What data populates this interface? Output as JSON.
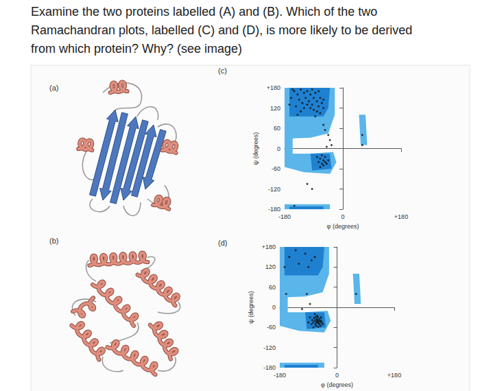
{
  "question": {
    "lines": [
      "Examine the two proteins labelled (A) and (B). Which of the two",
      "Ramachandran plots, labelled (C) and (D), is more likely to be derived",
      "from which protein? Why? (see image)"
    ]
  },
  "figure": {
    "proteins": [
      {
        "label": "(a)"
      },
      {
        "label": "(b)"
      }
    ]
  },
  "chart_data": [
    {
      "label": "(c)",
      "type": "scatter",
      "xlabel": "φ (degrees)",
      "ylabel": "ψ (degrees)",
      "xlim": [
        -180,
        180
      ],
      "ylim": [
        -180,
        180
      ],
      "xticks": [
        -180,
        0,
        {
          "value": 180,
          "label": "+180"
        }
      ],
      "yticks": [
        {
          "value": 180,
          "label": "+180"
        },
        120,
        60,
        0,
        -60,
        -120,
        -180
      ],
      "grid": false,
      "regions": [
        {
          "color": "#5ab5ea",
          "points": [
            [
              -180,
              180
            ],
            [
              -25,
              180
            ],
            [
              -25,
              100
            ],
            [
              -45,
              45
            ],
            [
              -100,
              32
            ],
            [
              -155,
              30
            ],
            [
              -155,
              -15
            ],
            [
              -100,
              -15
            ],
            [
              -30,
              -10
            ],
            [
              -20,
              -40
            ],
            [
              -40,
              -75
            ],
            [
              -120,
              -70
            ],
            [
              -180,
              -55
            ]
          ]
        },
        {
          "color": "#5ab5ea",
          "points": [
            [
              -180,
              -180
            ],
            [
              -40,
              -180
            ],
            [
              -40,
              -165
            ],
            [
              -180,
              -165
            ]
          ]
        },
        {
          "color": "#5ab5ea",
          "points": [
            [
              50,
              100
            ],
            [
              70,
              100
            ],
            [
              75,
              10
            ],
            [
              55,
              10
            ]
          ]
        },
        {
          "color": "#1f80d0",
          "points": [
            [
              -165,
              180
            ],
            [
              -40,
              180
            ],
            [
              -45,
              120
            ],
            [
              -60,
              95
            ],
            [
              -165,
              95
            ]
          ]
        },
        {
          "color": "#1f80d0",
          "points": [
            [
              -100,
              -15
            ],
            [
              -40,
              -15
            ],
            [
              -35,
              -60
            ],
            [
              -95,
              -65
            ]
          ]
        },
        {
          "color": "#1f80d0",
          "points": [
            [
              -165,
              -180
            ],
            [
              -60,
              -180
            ],
            [
              -60,
              -172
            ],
            [
              -165,
              -172
            ]
          ]
        }
      ],
      "points": {
        "color": "#111111",
        "values": [
          [
            -150,
            170
          ],
          [
            -140,
            160
          ],
          [
            -130,
            175
          ],
          [
            -120,
            165
          ],
          [
            -115,
            150
          ],
          [
            -110,
            170
          ],
          [
            -105,
            140
          ],
          [
            -100,
            160
          ],
          [
            -95,
            130
          ],
          [
            -90,
            150
          ],
          [
            -85,
            165
          ],
          [
            -80,
            140
          ],
          [
            -75,
            125
          ],
          [
            -70,
            150
          ],
          [
            -125,
            135
          ],
          [
            -135,
            145
          ],
          [
            -145,
            125
          ],
          [
            -160,
            150
          ],
          [
            -155,
            175
          ],
          [
            -100,
            120
          ],
          [
            -90,
            115
          ],
          [
            -80,
            110
          ],
          [
            -65,
            135
          ],
          [
            -60,
            145
          ],
          [
            -110,
            130
          ],
          [
            -120,
            120
          ],
          [
            -130,
            110
          ],
          [
            -140,
            100
          ],
          [
            -75,
            170
          ],
          [
            -60,
            120
          ],
          [
            -85,
            95
          ],
          [
            -95,
            175
          ],
          [
            -165,
            130
          ],
          [
            -70,
            105
          ],
          [
            -60,
            70
          ],
          [
            -55,
            55
          ],
          [
            -45,
            40
          ],
          [
            -40,
            25
          ],
          [
            -35,
            10
          ],
          [
            -50,
            5
          ],
          [
            -75,
            -40
          ],
          [
            -70,
            -30
          ],
          [
            -65,
            -45
          ],
          [
            -60,
            -35
          ],
          [
            -60,
            -50
          ],
          [
            -55,
            -40
          ],
          [
            -55,
            -25
          ],
          [
            -50,
            -45
          ],
          [
            -70,
            -55
          ],
          [
            -80,
            -25
          ],
          [
            -65,
            -20
          ],
          [
            -45,
            -35
          ],
          [
            60,
            40
          ],
          [
            60,
            10
          ],
          [
            -110,
            -105
          ],
          [
            -150,
            -170
          ],
          [
            -95,
            -120
          ]
        ]
      }
    },
    {
      "label": "(d)",
      "type": "scatter",
      "xlabel": "φ (degrees)",
      "ylabel": "ψ (degrees)",
      "xlim": [
        -180,
        180
      ],
      "ylim": [
        -180,
        180
      ],
      "xticks": [
        -180,
        0,
        {
          "value": 180,
          "label": "+180"
        }
      ],
      "yticks": [
        {
          "value": 180,
          "label": "+180"
        },
        120,
        60,
        0,
        -60,
        -120,
        -180
      ],
      "grid": false,
      "regions": [
        {
          "color": "#5ab5ea",
          "points": [
            [
              -180,
              180
            ],
            [
              -25,
              180
            ],
            [
              -25,
              100
            ],
            [
              -45,
              45
            ],
            [
              -100,
              32
            ],
            [
              -155,
              30
            ],
            [
              -155,
              -15
            ],
            [
              -100,
              -15
            ],
            [
              -30,
              -10
            ],
            [
              -20,
              -40
            ],
            [
              -40,
              -75
            ],
            [
              -120,
              -70
            ],
            [
              -180,
              -55
            ]
          ]
        },
        {
          "color": "#5ab5ea",
          "points": [
            [
              -180,
              -180
            ],
            [
              -40,
              -180
            ],
            [
              -40,
              -165
            ],
            [
              -180,
              -165
            ]
          ]
        },
        {
          "color": "#5ab5ea",
          "points": [
            [
              50,
              100
            ],
            [
              70,
              100
            ],
            [
              75,
              10
            ],
            [
              55,
              10
            ]
          ]
        },
        {
          "color": "#1f80d0",
          "points": [
            [
              -165,
              180
            ],
            [
              -40,
              180
            ],
            [
              -45,
              120
            ],
            [
              -60,
              95
            ],
            [
              -165,
              95
            ]
          ]
        },
        {
          "color": "#1f80d0",
          "points": [
            [
              -100,
              -15
            ],
            [
              -40,
              -15
            ],
            [
              -35,
              -60
            ],
            [
              -95,
              -65
            ]
          ]
        },
        {
          "color": "#1f80d0",
          "points": [
            [
              -165,
              -180
            ],
            [
              -60,
              -180
            ],
            [
              -60,
              -172
            ],
            [
              -165,
              -172
            ]
          ]
        }
      ],
      "points": {
        "color": "#111111",
        "values": [
          [
            -75,
            -45
          ],
          [
            -70,
            -40
          ],
          [
            -68,
            -50
          ],
          [
            -65,
            -35
          ],
          [
            -65,
            -45
          ],
          [
            -63,
            -42
          ],
          [
            -62,
            -38
          ],
          [
            -60,
            -45
          ],
          [
            -60,
            -30
          ],
          [
            -58,
            -48
          ],
          [
            -57,
            -40
          ],
          [
            -55,
            -35
          ],
          [
            -55,
            -50
          ],
          [
            -53,
            -43
          ],
          [
            -50,
            -40
          ],
          [
            -50,
            -30
          ],
          [
            -48,
            -45
          ],
          [
            -72,
            -32
          ],
          [
            -78,
            -38
          ],
          [
            -66,
            -55
          ],
          [
            -62,
            -25
          ],
          [
            -70,
            -20
          ],
          [
            -80,
            -50
          ],
          [
            -45,
            -50
          ],
          [
            -85,
            -30
          ],
          [
            -52,
            -55
          ],
          [
            -67,
            -28
          ],
          [
            -59,
            -58
          ],
          [
            -74,
            -60
          ],
          [
            -90,
            -45
          ],
          [
            -150,
            150
          ],
          [
            -120,
            130
          ],
          [
            -100,
            160
          ],
          [
            -90,
            120
          ],
          [
            -80,
            140
          ],
          [
            -130,
            170
          ],
          [
            -70,
            150
          ],
          [
            -165,
            120
          ],
          [
            -160,
            40
          ],
          [
            -95,
            40
          ],
          [
            -85,
            10
          ],
          [
            -110,
            -5
          ],
          [
            60,
            40
          ]
        ]
      }
    }
  ]
}
